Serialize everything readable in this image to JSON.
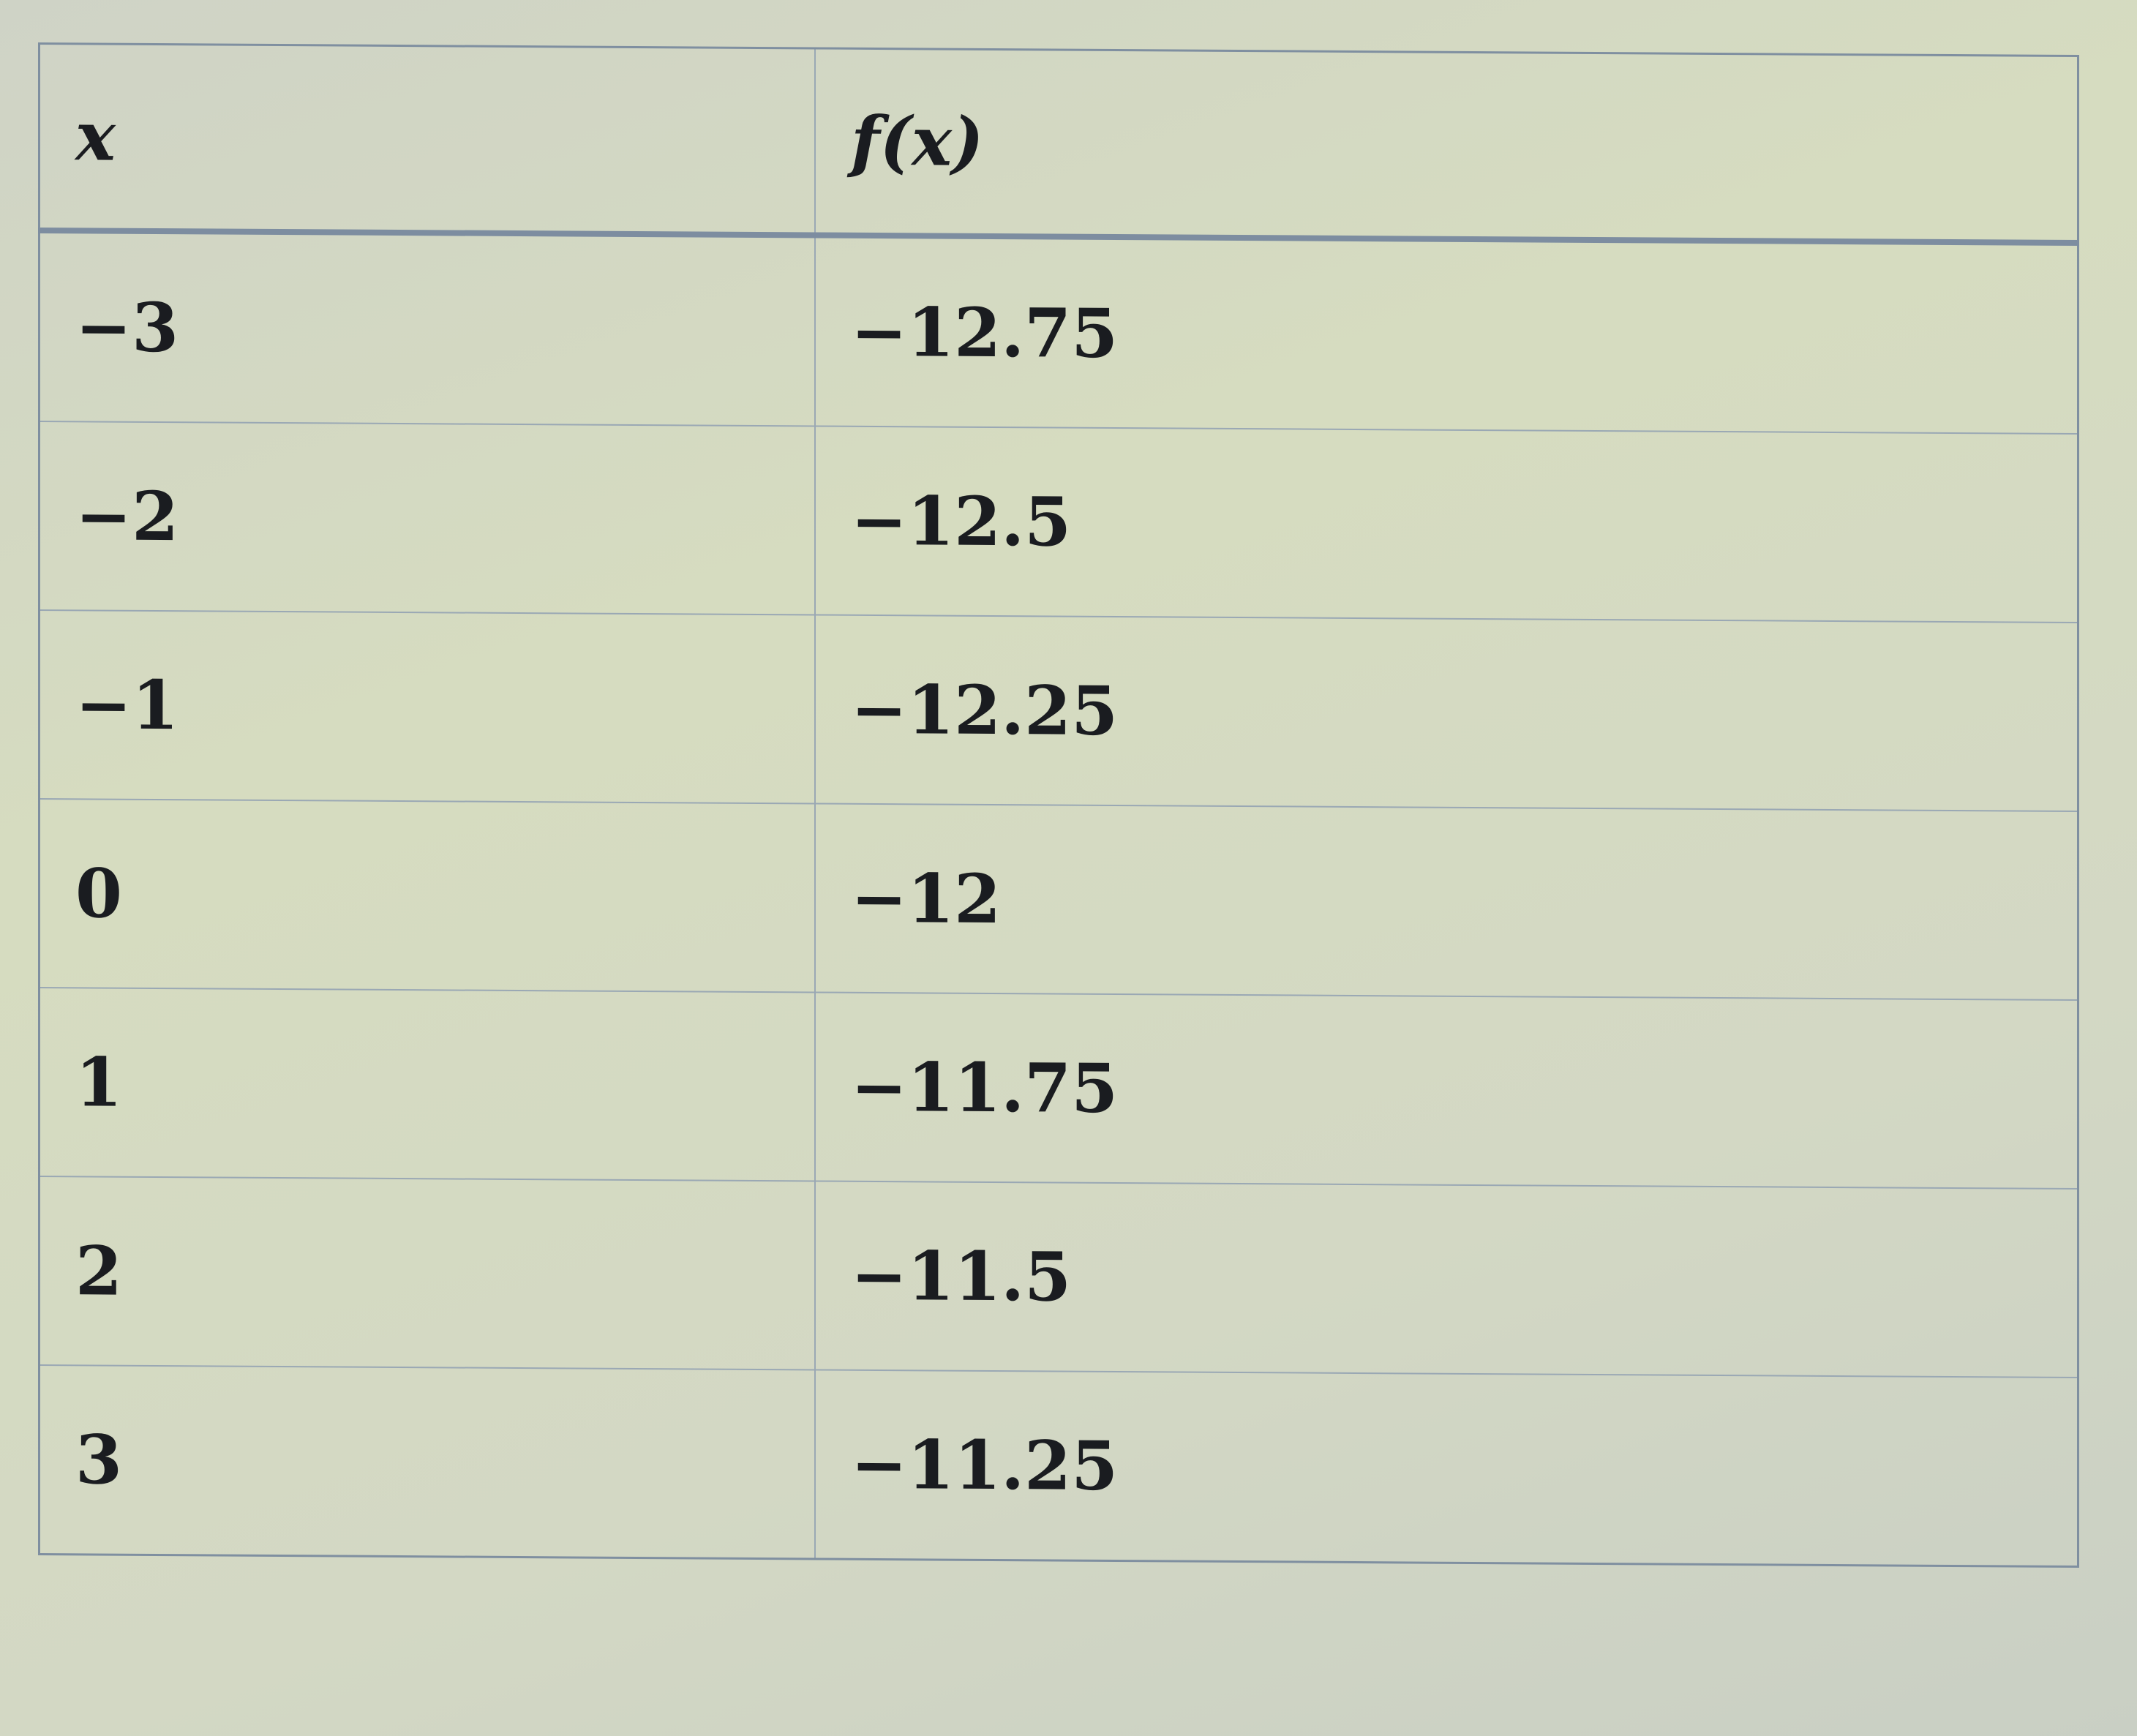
{
  "table": {
    "headers": [
      "x",
      "f(x)"
    ],
    "rows": [
      [
        "−3",
        "−12.75"
      ],
      [
        "−2",
        "−12.5"
      ],
      [
        "−1",
        "−12.25"
      ],
      [
        "0",
        "−12"
      ],
      [
        "1",
        "−11.75"
      ],
      [
        "2",
        "−11.5"
      ],
      [
        "3",
        "−11.25"
      ]
    ]
  }
}
